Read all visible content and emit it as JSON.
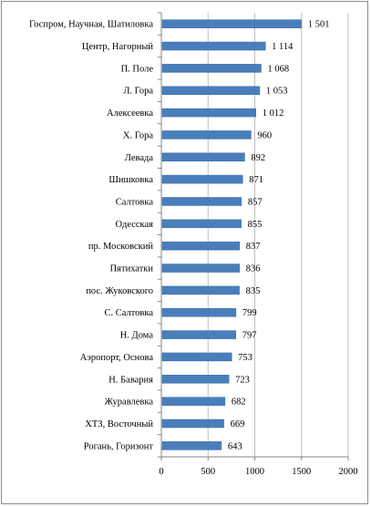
{
  "chart_data": {
    "type": "bar",
    "orientation": "horizontal",
    "title": "",
    "xlabel": "",
    "ylabel": "",
    "xlim": [
      0,
      2000
    ],
    "x_ticks": [
      0,
      500,
      1000,
      1500,
      2000
    ],
    "x_tick_labels": [
      "0",
      "500",
      "1000",
      "1500",
      "2000"
    ],
    "grid": true,
    "legend": "none",
    "bar_color": "#4a7ebb",
    "categories": [
      "Госпром, Научная, Шатиловка",
      "Центр, Нагорный",
      "П. Поле",
      "Л. Гора",
      "Алексеевка",
      "Х. Гора",
      "Левада",
      "Шишковка",
      "Салтовка",
      "Одесская",
      "пр. Московский",
      "Пятихатки",
      "пос. Жуковского",
      "С. Салтовка",
      "Н. Дома",
      "Аэропорт, Основа",
      "Н. Бавария",
      "Журавлевка",
      "ХТЗ, Восточный",
      "Рогань, Горизонт"
    ],
    "values": [
      1501,
      1114,
      1068,
      1053,
      1012,
      960,
      892,
      871,
      857,
      855,
      837,
      836,
      835,
      799,
      797,
      753,
      723,
      682,
      669,
      643
    ],
    "value_labels": [
      "1 501",
      "1 114",
      "1 068",
      "1 053",
      "1 012",
      "960",
      "892",
      "871",
      "857",
      "855",
      "837",
      "836",
      "835",
      "799",
      "797",
      "753",
      "723",
      "682",
      "669",
      "643"
    ]
  }
}
